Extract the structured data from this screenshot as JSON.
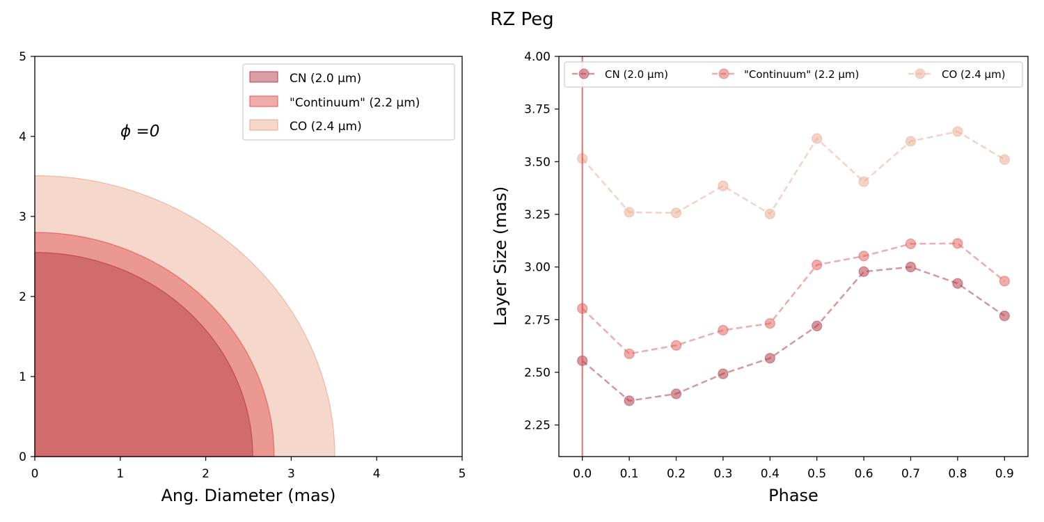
{
  "figure": {
    "suptitle": "RZ Peg"
  },
  "chart_data": [
    {
      "type": "area",
      "xlabel": "Ang. Diameter (mas)",
      "ylabel": "",
      "xlim": [
        0,
        5
      ],
      "ylim": [
        0,
        5
      ],
      "ticks": [
        "0",
        "1",
        "2",
        "3",
        "4",
        "5"
      ],
      "annotation": {
        "text": "ϕ =0",
        "x": 1.0,
        "y": 4.0
      },
      "layers": [
        {
          "name": "CO (2.4 µm)",
          "radius": 3.51,
          "color": "#e9a78f",
          "alpha": 0.45
        },
        {
          "name": "\"Continuum\" (2.2 µm)",
          "radius": 2.8,
          "color": "#df5a55",
          "alpha": 0.5
        },
        {
          "name": "CN (2.0 µm)",
          "radius": 2.55,
          "color": "#b5404a",
          "alpha": 0.5
        }
      ],
      "legend": {
        "placement": "upper right",
        "entries": [
          "CN (2.0 µm)",
          "\"Continuum\" (2.2 µm)",
          "CO (2.4 µm)"
        ]
      },
      "grid": false
    },
    {
      "type": "line",
      "xlabel": "Phase",
      "ylabel": "Layer Size (mas)",
      "xlim": [
        -0.05,
        0.95
      ],
      "ylim": [
        2.1,
        4.0
      ],
      "x": [
        0.0,
        0.1,
        0.2,
        0.3,
        0.4,
        0.5,
        0.6,
        0.7,
        0.8,
        0.9
      ],
      "xticks": [
        "0.0",
        "0.1",
        "0.2",
        "0.3",
        "0.4",
        "0.5",
        "0.6",
        "0.7",
        "0.8",
        "0.9"
      ],
      "yticks": [
        "2.25",
        "2.50",
        "2.75",
        "3.00",
        "3.25",
        "3.50",
        "3.75",
        "4.00"
      ],
      "current_phase": 0.0,
      "series": [
        {
          "name": "CN (2.0 µm)",
          "color": "#b5404a",
          "alpha": 0.55,
          "values": [
            2.555,
            2.365,
            2.398,
            2.493,
            2.567,
            2.72,
            2.978,
            3.0,
            2.922,
            2.768
          ]
        },
        {
          "name": "\"Continuum\" (2.2 µm)",
          "color": "#df5a55",
          "alpha": 0.5,
          "values": [
            2.803,
            2.588,
            2.628,
            2.7,
            2.732,
            3.01,
            3.052,
            3.11,
            3.112,
            2.933
          ]
        },
        {
          "name": "CO (2.4 µm)",
          "color": "#e9a78f",
          "alpha": 0.5,
          "values": [
            3.515,
            3.26,
            3.257,
            3.385,
            3.252,
            3.61,
            3.405,
            3.597,
            3.643,
            3.51
          ]
        }
      ],
      "legend": {
        "placement": "top, 3 columns",
        "entries": [
          "CN (2.0 µm)",
          "\"Continuum\" (2.2 µm)",
          "CO (2.4 µm)"
        ]
      },
      "grid": false
    }
  ]
}
